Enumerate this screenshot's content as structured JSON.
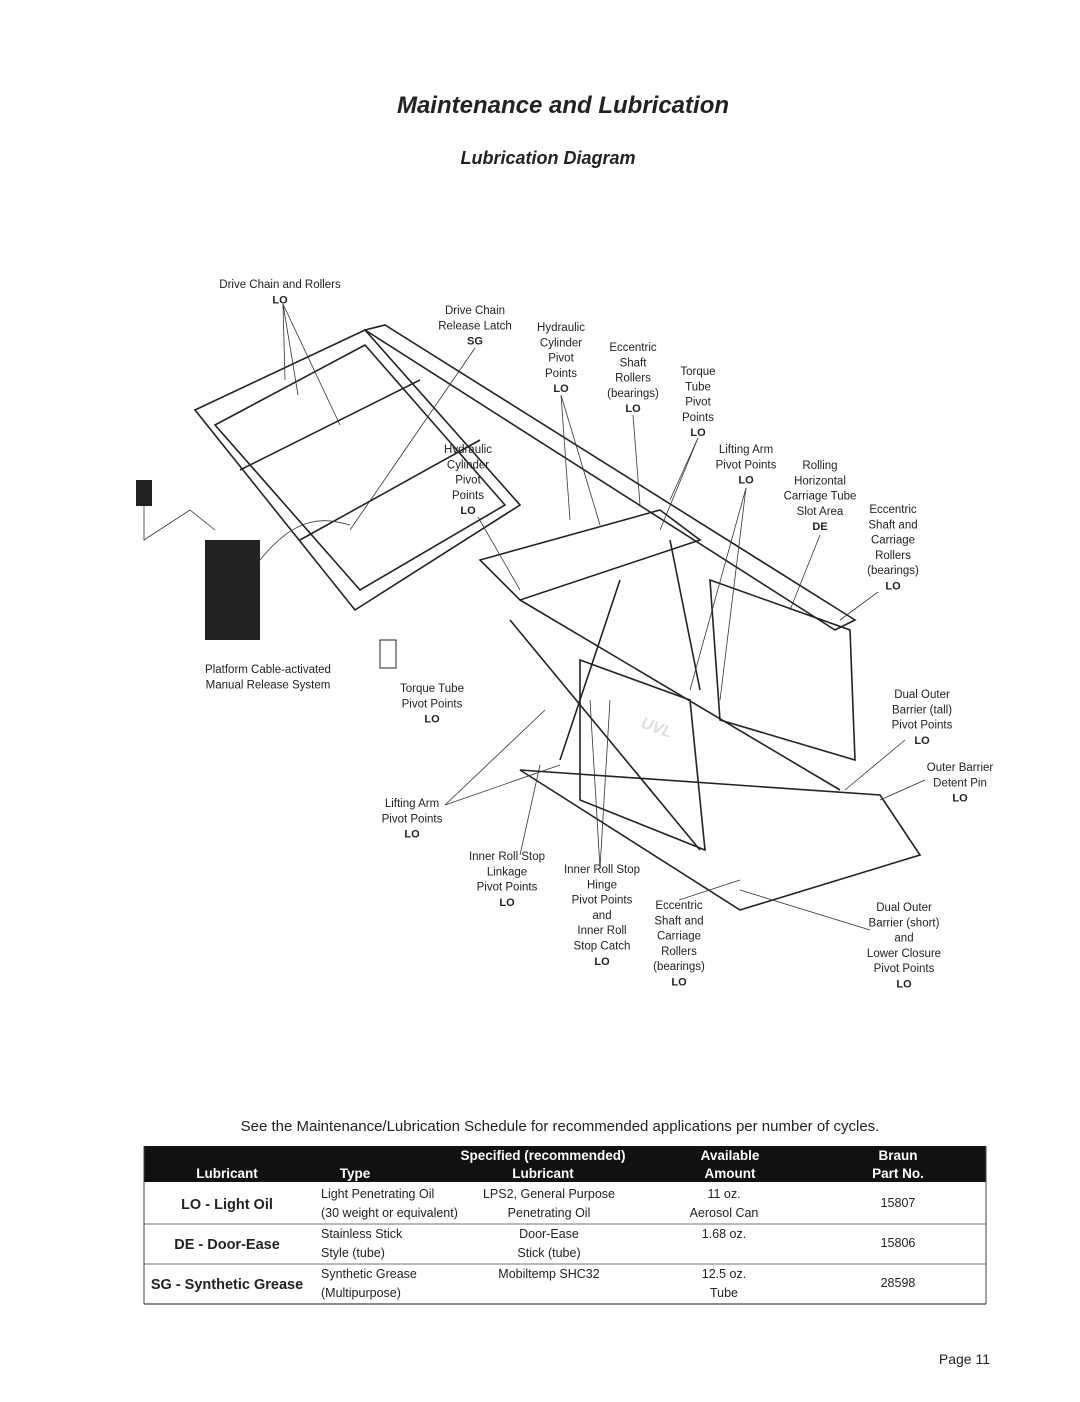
{
  "header": {
    "title": "Maintenance and Lubrication",
    "subtitle": "Lubrication Diagram"
  },
  "diagram": {
    "labels": [
      {
        "text": [
          "Drive Chain and Rollers"
        ],
        "code": "LO"
      },
      {
        "text": [
          "Drive Chain",
          "Release Latch"
        ],
        "code": "SG"
      },
      {
        "text": [
          "Hydraulic",
          "Cylinder",
          "Pivot",
          "Points"
        ],
        "code": "LO"
      },
      {
        "text": [
          "Eccentric",
          "Shaft",
          "Rollers",
          "(bearings)"
        ],
        "code": "LO"
      },
      {
        "text": [
          "Torque",
          "Tube",
          "Pivot",
          "Points"
        ],
        "code": "LO"
      },
      {
        "text": [
          "Lifting Arm",
          "Pivot Points"
        ],
        "code": "LO"
      },
      {
        "text": [
          "Rolling",
          "Horizontal",
          "Carriage Tube",
          "Slot Area"
        ],
        "code": "DE"
      },
      {
        "text": [
          "Eccentric",
          "Shaft and",
          "Carriage",
          "Rollers",
          "(bearings)"
        ],
        "code": "LO"
      },
      {
        "text": [
          "Hydraulic",
          "Cylinder",
          "Pivot",
          "Points"
        ],
        "code": "LO"
      },
      {
        "text": [
          "Platform Cable-activated",
          "Manual Release System"
        ]
      },
      {
        "text": [
          "Torque Tube",
          "Pivot Points"
        ],
        "code": "LO"
      },
      {
        "text": [
          "Dual Outer",
          "Barrier (tall)",
          "Pivot Points"
        ],
        "code": "LO"
      },
      {
        "text": [
          "Outer Barrier",
          "Detent Pin"
        ],
        "code": "LO"
      },
      {
        "text": [
          "Lifting Arm",
          "Pivot Points"
        ],
        "code": "LO"
      },
      {
        "text": [
          "Inner Roll Stop",
          "Linkage",
          "Pivot Points"
        ],
        "code": "LO"
      },
      {
        "text": [
          "Inner Roll Stop",
          "Hinge",
          "Pivot Points",
          "and",
          "Inner Roll",
          "Stop Catch"
        ],
        "code": "LO"
      },
      {
        "text": [
          "Eccentric",
          "Shaft and",
          "Carriage",
          "Rollers",
          "(bearings)"
        ],
        "code": "LO"
      },
      {
        "text": [
          "Dual Outer",
          "Barrier (short)",
          "and",
          "Lower Closure",
          "Pivot Points"
        ],
        "code": "LO"
      }
    ],
    "logo": "UVL"
  },
  "note": "See the Maintenance/Lubrication Schedule for recommended applications per number of cycles.",
  "table": {
    "header": [
      [
        "",
        "",
        "Specified (recommended)",
        "Available",
        "Braun"
      ],
      [
        "Lubricant",
        "Type",
        "Lubricant",
        "Amount",
        "Part No."
      ]
    ],
    "rows": [
      {
        "lubricant": "LO - Light Oil",
        "type": [
          "Light Penetrating Oil",
          "(30 weight or equivalent)"
        ],
        "specified": [
          "LPS2, General Purpose",
          "Penetrating Oil"
        ],
        "amount": [
          "11 oz.",
          "Aerosol Can"
        ],
        "part": "15807"
      },
      {
        "lubricant": "DE - Door-Ease",
        "type": [
          "Stainless Stick",
          "Style (tube)"
        ],
        "specified": [
          "Door-Ease",
          "Stick (tube)"
        ],
        "amount": [
          "1.68 oz."
        ],
        "part": "15806"
      },
      {
        "lubricant": "SG - Synthetic Grease",
        "type": [
          "Synthetic Grease",
          "(Multipurpose)"
        ],
        "specified": [
          "Mobiltemp SHC32"
        ],
        "amount": [
          "12.5 oz.",
          "Tube"
        ],
        "part": "28598"
      }
    ]
  },
  "footer": {
    "page": "Page 11"
  }
}
